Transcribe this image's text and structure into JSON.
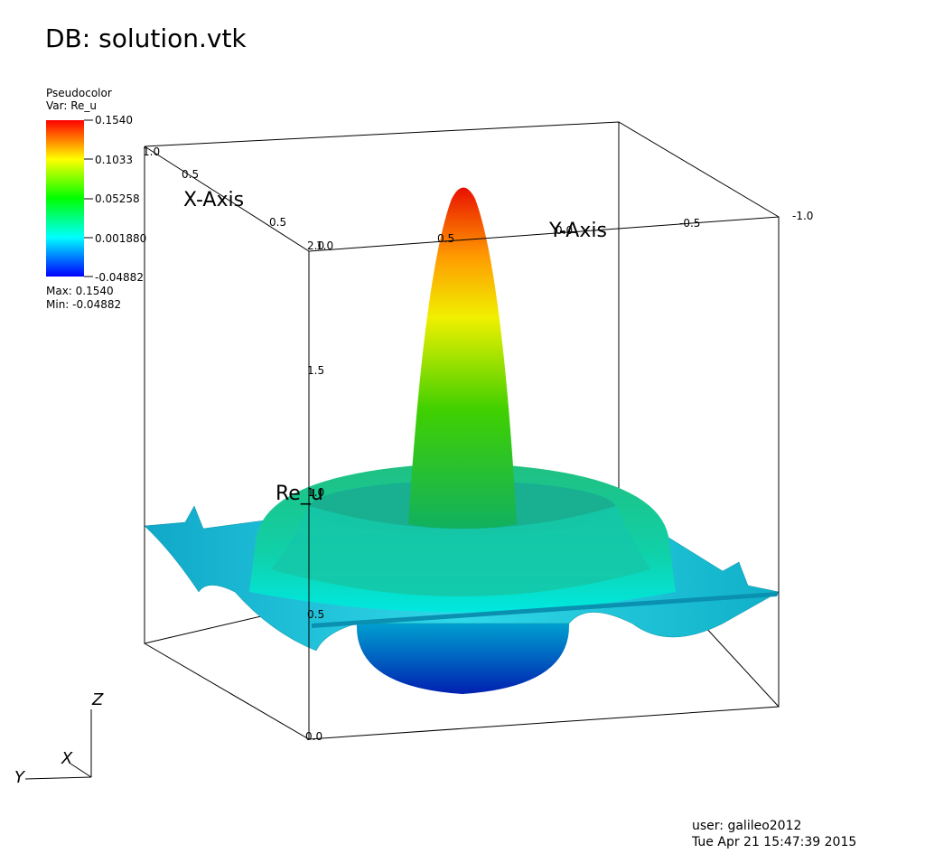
{
  "header": {
    "title": "DB: solution.vtk"
  },
  "legend": {
    "plot": "Pseudocolor",
    "variable": "Var: Re_u",
    "ticks": [
      "0.1540",
      "0.1033",
      "0.05258",
      "0.001880",
      "-0.04882"
    ],
    "max": "Max:  0.1540",
    "min": "Min: -0.04882"
  },
  "axes": {
    "x_label": "X-Axis",
    "y_label": "Y-Axis",
    "z_label": "Re_u",
    "x_ticks": [
      "1.0",
      "0.5",
      "0.5"
    ],
    "y_ticks": [
      "1.0",
      "0.5",
      "0.0",
      "-0.5",
      "-1.0"
    ],
    "z_ticks": [
      "2.0",
      "1.5",
      "1.0",
      "0.5",
      "0.0"
    ]
  },
  "triad": {
    "z": "Z",
    "x": "X",
    "y": "Y"
  },
  "footer": {
    "user": "user: galileo2012",
    "date": "Tue Apr 21 15:47:39 2015"
  }
}
